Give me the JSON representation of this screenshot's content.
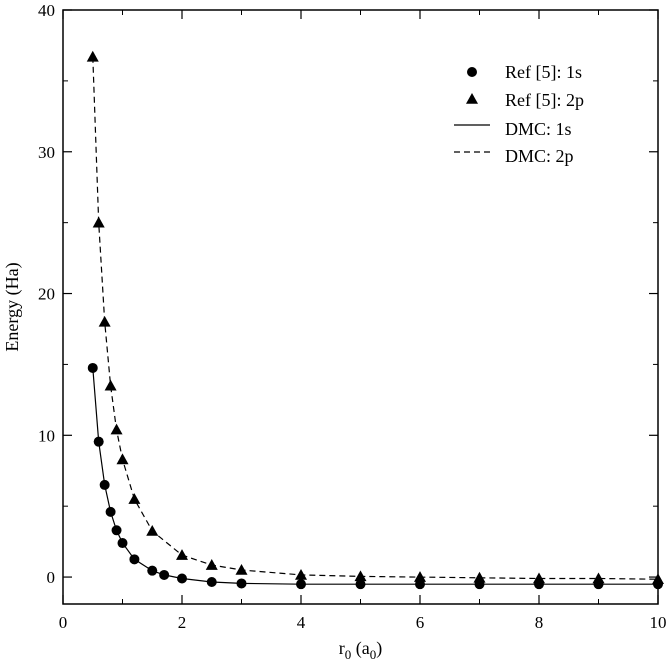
{
  "chart_data": {
    "type": "line",
    "title": "",
    "xlabel_main": "r",
    "xlabel_sub": "0",
    "xlabel_open": " (a",
    "xlabel_sub2": "0",
    "xlabel_close": ")",
    "ylabel": "Energy (Ha)",
    "xlim": [
      0,
      10
    ],
    "ylim": [
      -1.9,
      40
    ],
    "xticks": [
      0,
      2,
      4,
      6,
      8,
      10
    ],
    "yticks": [
      0,
      10,
      20,
      30,
      40
    ],
    "xtick_labels": [
      "0",
      "2",
      "4",
      "6",
      "8",
      "10"
    ],
    "ytick_labels": [
      "0",
      "10",
      "20",
      "30",
      "40"
    ],
    "grid": false,
    "legend_position": "top-right",
    "series": [
      {
        "name": "Ref [5]: 1s",
        "style": "circle-markers",
        "x": [
          0.5,
          0.6,
          0.7,
          0.8,
          0.9,
          1.0,
          1.2,
          1.5,
          1.7,
          2.0,
          2.5,
          3.0,
          4.0,
          5.0,
          6.0,
          7.0,
          8.0,
          9.0,
          10.0
        ],
        "y": [
          14.75,
          9.55,
          6.5,
          4.6,
          3.3,
          2.4,
          1.25,
          0.45,
          0.15,
          -0.1,
          -0.35,
          -0.45,
          -0.5,
          -0.5,
          -0.5,
          -0.5,
          -0.5,
          -0.5,
          -0.5
        ]
      },
      {
        "name": "Ref [5]: 2p",
        "style": "triangle-markers",
        "x": [
          0.5,
          0.6,
          0.7,
          0.8,
          0.9,
          1.0,
          1.2,
          1.5,
          2.0,
          2.5,
          3.0,
          4.0,
          5.0,
          6.0,
          7.0,
          8.0,
          9.0,
          10.0
        ],
        "y": [
          36.7,
          25.0,
          18.0,
          13.5,
          10.4,
          8.3,
          5.5,
          3.25,
          1.55,
          0.85,
          0.5,
          0.15,
          0.05,
          0.0,
          -0.05,
          -0.1,
          -0.1,
          -0.15
        ]
      },
      {
        "name": "DMC: 1s",
        "style": "solid-line",
        "x": [
          0.5,
          0.6,
          0.7,
          0.8,
          0.9,
          1.0,
          1.2,
          1.5,
          1.7,
          2.0,
          2.5,
          3.0,
          4.0,
          5.0,
          6.0,
          7.0,
          8.0,
          9.0,
          10.0
        ],
        "y": [
          14.75,
          9.55,
          6.5,
          4.6,
          3.3,
          2.4,
          1.25,
          0.45,
          0.15,
          -0.1,
          -0.35,
          -0.45,
          -0.5,
          -0.5,
          -0.5,
          -0.5,
          -0.5,
          -0.5,
          -0.5
        ]
      },
      {
        "name": "DMC: 2p",
        "style": "dashed-line",
        "x": [
          0.5,
          0.6,
          0.7,
          0.8,
          0.9,
          1.0,
          1.2,
          1.5,
          2.0,
          2.5,
          3.0,
          4.0,
          5.0,
          6.0,
          7.0,
          8.0,
          9.0,
          10.0
        ],
        "y": [
          36.7,
          25.0,
          18.0,
          13.5,
          10.4,
          8.3,
          5.5,
          3.25,
          1.55,
          0.85,
          0.5,
          0.15,
          0.05,
          0.0,
          -0.05,
          -0.1,
          -0.1,
          -0.15
        ]
      }
    ]
  }
}
